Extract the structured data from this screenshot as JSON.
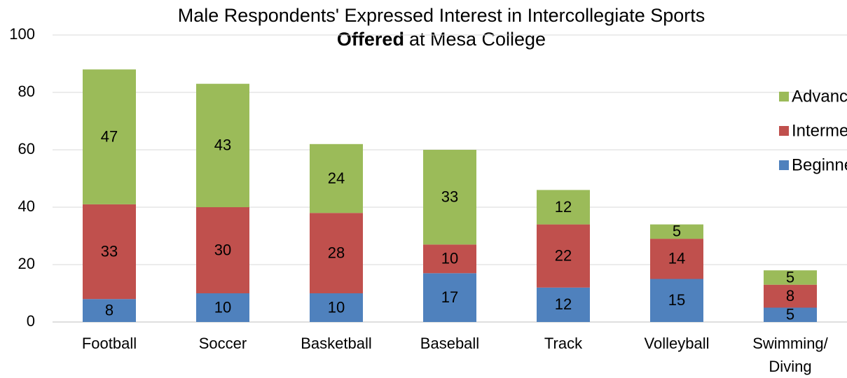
{
  "chart_data": {
    "type": "stacked_bar",
    "title": "Male Respondents' Expressed Interest in Intercollegiate Sports",
    "subtitle_bold": "Offered",
    "subtitle": "at Mesa College",
    "categories": [
      "Football",
      "Soccer",
      "Basketball",
      "Baseball",
      "Track",
      "Volleyball",
      "Swimming/\nDiving"
    ],
    "series": [
      {
        "name": "Beginner",
        "color": "#4f81bd",
        "values": [
          8,
          10,
          10,
          17,
          12,
          15,
          5
        ]
      },
      {
        "name": "Intermediate",
        "color": "#c0504d",
        "values": [
          33,
          30,
          28,
          10,
          22,
          14,
          8
        ]
      },
      {
        "name": "Advanced",
        "color": "#9bbb59",
        "values": [
          47,
          43,
          24,
          33,
          12,
          5,
          5
        ]
      }
    ],
    "ylim": [
      0,
      100
    ],
    "yticks": [
      0,
      20,
      40,
      60,
      80,
      100
    ],
    "grid": true,
    "legend": "right"
  }
}
